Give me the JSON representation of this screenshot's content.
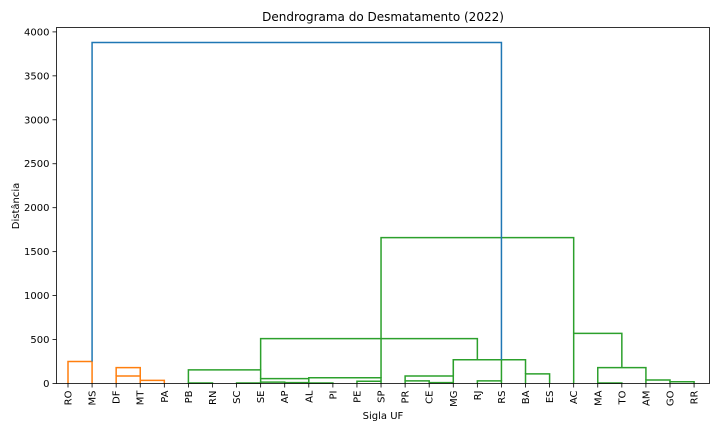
{
  "chart_data": {
    "type": "dendrogram",
    "title": "Dendrograma do Desmatamento (2022)",
    "xlabel": "Sigla UF",
    "ylabel": "Distância",
    "ylim": [
      0,
      4050
    ],
    "yticks": [
      0,
      500,
      1000,
      1500,
      2000,
      2500,
      3000,
      3500,
      4000
    ],
    "leaves": [
      "RO",
      "MS",
      "DF",
      "MT",
      "PA",
      "PB",
      "RN",
      "SC",
      "SE",
      "AP",
      "AL",
      "PI",
      "PE",
      "SP",
      "PR",
      "CE",
      "MG",
      "RJ",
      "RS",
      "BA",
      "ES",
      "AC",
      "MA",
      "TO",
      "AM",
      "GO",
      "RR"
    ],
    "colors": {
      "orange": "#ff7f0e",
      "green": "#2ca02c",
      "blue": "#1f77b4"
    },
    "links": [
      {
        "l": "DF",
        "r": "MT",
        "h": 180,
        "c": "orange"
      },
      {
        "l": "MT",
        "r": "PA",
        "h": 35,
        "c": "orange"
      },
      {
        "l": "DF",
        "r": "MT",
        "h": 85,
        "c": "orange"
      },
      {
        "l": "RO",
        "r": "MS",
        "h": 250,
        "c": "orange"
      },
      {
        "l": "PB",
        "r": "RN",
        "h": 5,
        "c": "green"
      },
      {
        "l": "SC",
        "r": "SE",
        "h": 5,
        "c": "green"
      },
      {
        "l": "SE",
        "r": "AP",
        "h": 15,
        "c": "green"
      },
      {
        "l": "AP",
        "r": "AL",
        "h": 10,
        "c": "green"
      },
      {
        "l": "AL",
        "r": "PI",
        "h": 5,
        "c": "green"
      },
      {
        "l": "PE",
        "r": "SP",
        "h": 25,
        "c": "green"
      },
      {
        "l": "SE",
        "r": "AL",
        "h": 55,
        "c": "green"
      },
      {
        "l": "AL",
        "r": "SP",
        "h": 65,
        "c": "green"
      },
      {
        "l": "PB",
        "r": "SE",
        "h": 155,
        "c": "green"
      },
      {
        "l": "CE",
        "r": "MG",
        "h": 10,
        "c": "green"
      },
      {
        "l": "PR",
        "r": "CE",
        "h": 30,
        "c": "green"
      },
      {
        "l": "PR",
        "r": "MG",
        "h": 85,
        "c": "green"
      },
      {
        "l": "RJ",
        "r": "RS",
        "h": 30,
        "c": "green"
      },
      {
        "l": "MG",
        "r": "RS",
        "h": 270,
        "c": "green"
      },
      {
        "l": "BA",
        "r": "ES",
        "h": 110,
        "c": "green"
      },
      {
        "l": "MG",
        "r": "BA",
        "h": 270,
        "c": "green"
      },
      {
        "l": "SE",
        "r": "RJ",
        "h": 510,
        "c": "green"
      },
      {
        "l": "MA",
        "r": "TO",
        "h": 5,
        "c": "green"
      },
      {
        "l": "GO",
        "r": "RR",
        "h": 20,
        "c": "green"
      },
      {
        "l": "AM",
        "r": "GO",
        "h": 40,
        "c": "green"
      },
      {
        "l": "MA",
        "r": "AM",
        "h": 180,
        "c": "green"
      },
      {
        "l": "AC",
        "r": "TO",
        "h": 570,
        "c": "green"
      },
      {
        "l": "SP",
        "r": "AC",
        "h": 1660,
        "c": "green"
      },
      {
        "l": "MS",
        "r": "RS",
        "h": 3880,
        "c": "blue"
      }
    ]
  }
}
